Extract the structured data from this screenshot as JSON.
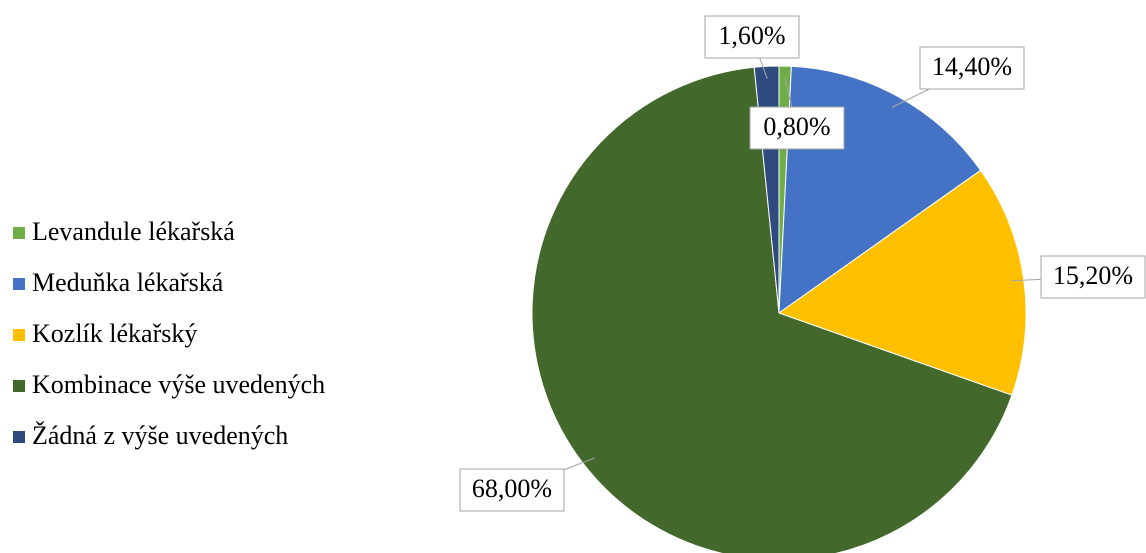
{
  "chart_data": {
    "type": "pie",
    "categories": [
      "Levandule lékařská",
      "Meduňka lékařská",
      "Kozlík lékařský",
      "Kombinace výše uvedených",
      "Žádná z výše uvedených"
    ],
    "values": [
      0.8,
      14.4,
      15.2,
      68,
      1.6
    ],
    "value_labels": [
      "0,80%",
      "14,40%",
      "15,20%",
      "68,00%",
      "1,60%"
    ],
    "colors": [
      "#70ad47",
      "#4472c4",
      "#ffc000",
      "#43682b",
      "#2f4a7f"
    ],
    "legend": "left"
  }
}
